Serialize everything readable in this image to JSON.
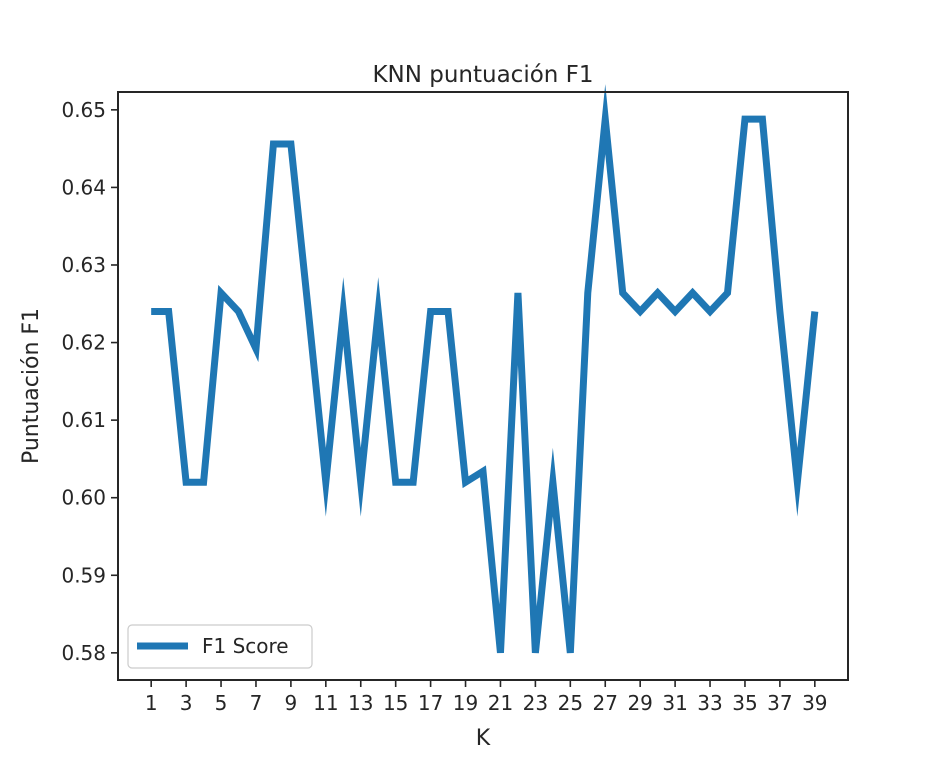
{
  "chart_data": {
    "type": "line",
    "title": "KNN puntuación F1",
    "xlabel": "K",
    "ylabel": "Puntuación F1",
    "xlim": [
      -0.9,
      40.9
    ],
    "ylim": [
      0.5765,
      0.6523
    ],
    "x_ticks": [
      "1",
      "3",
      "5",
      "7",
      "9",
      "11",
      "13",
      "15",
      "17",
      "19",
      "21",
      "23",
      "25",
      "27",
      "29",
      "31",
      "33",
      "35",
      "37",
      "39"
    ],
    "y_ticks": [
      "0.58",
      "0.59",
      "0.60",
      "0.61",
      "0.62",
      "0.63",
      "0.64",
      "0.65"
    ],
    "legend_position": "lower-left",
    "grid": false,
    "series": [
      {
        "name": "F1 Score",
        "color": "#1f77b4",
        "x": [
          1,
          2,
          3,
          4,
          5,
          6,
          7,
          8,
          9,
          10,
          11,
          12,
          13,
          14,
          15,
          16,
          17,
          18,
          19,
          20,
          21,
          22,
          23,
          24,
          25,
          26,
          27,
          28,
          29,
          30,
          31,
          32,
          33,
          34,
          35,
          36,
          37,
          38,
          39
        ],
        "y": [
          0.624,
          0.624,
          0.602,
          0.602,
          0.6264,
          0.624,
          0.6192,
          0.6456,
          0.6456,
          0.624,
          0.602,
          0.624,
          0.602,
          0.624,
          0.602,
          0.602,
          0.624,
          0.624,
          0.602,
          0.6034,
          0.58,
          0.6264,
          0.58,
          0.602,
          0.58,
          0.6264,
          0.6488,
          0.6264,
          0.624,
          0.6264,
          0.624,
          0.6264,
          0.624,
          0.6264,
          0.6488,
          0.6488,
          0.624,
          0.602,
          0.624
        ]
      }
    ]
  }
}
